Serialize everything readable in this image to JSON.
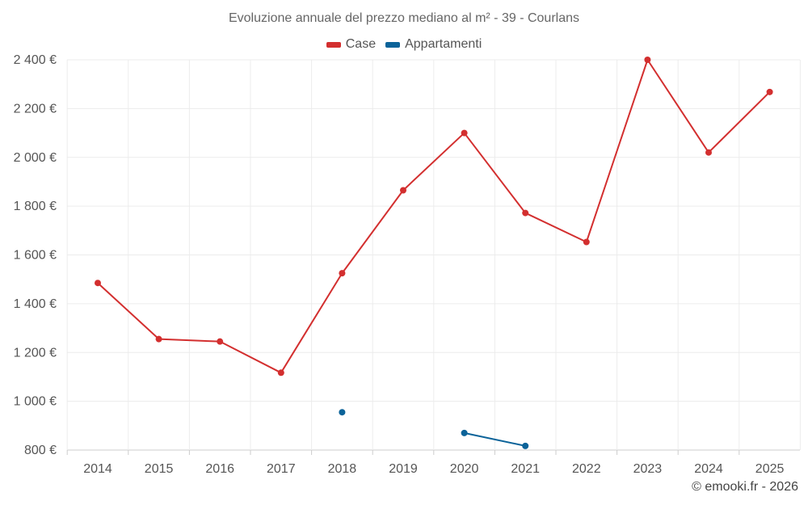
{
  "chart_data": {
    "type": "line",
    "title": "Evoluzione annuale del prezzo mediano al m² - 39 - Courlans",
    "x": [
      2014,
      2015,
      2016,
      2017,
      2018,
      2019,
      2020,
      2021,
      2022,
      2023,
      2024,
      2025
    ],
    "xlabels": [
      "2014",
      "2015",
      "2016",
      "2017",
      "2018",
      "2019",
      "2020",
      "2021",
      "2022",
      "2023",
      "2024",
      "2025"
    ],
    "ylim": [
      800,
      2400
    ],
    "yticks": [
      800,
      1000,
      1200,
      1400,
      1600,
      1800,
      2000,
      2200,
      2400
    ],
    "ytick_labels": [
      "800 €",
      "1 000 €",
      "1 200 €",
      "1 400 €",
      "1 600 €",
      "1 800 €",
      "2 000 €",
      "2 200 €",
      "2 400 €"
    ],
    "grid": true,
    "legend_position": "top-center",
    "series": [
      {
        "name": "Case",
        "color": "#d32f2f",
        "values": [
          1485,
          1255,
          1245,
          1117,
          1525,
          1865,
          2100,
          1772,
          1653,
          2400,
          2020,
          2268
        ]
      },
      {
        "name": "Appartamenti",
        "color": "#0b6399",
        "values": [
          null,
          null,
          null,
          null,
          955,
          null,
          870,
          817,
          null,
          null,
          null,
          null
        ]
      }
    ]
  },
  "credit": "© emooki.fr - 2026"
}
